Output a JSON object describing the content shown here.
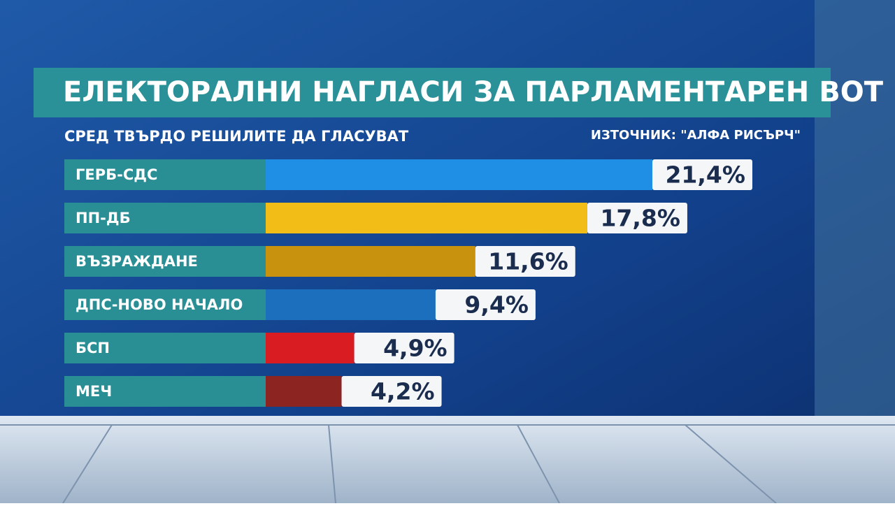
{
  "chart_data": {
    "type": "bar",
    "orientation": "horizontal",
    "title": "ЕЛЕКТОРАЛНИ НАГЛАСИ ЗА ПАРЛАМЕНТАРЕН ВОТ",
    "subtitle": "СРЕД ТВЪРДО РЕШИЛИТЕ ДА ГЛАСУВАТ",
    "source": "ИЗТОЧНИК: \"АЛФА РИСЪРЧ\"",
    "categories": [
      "ГЕРБ-СДС",
      "ПП-ДБ",
      "ВЪЗРАЖДАНЕ",
      "ДПС-НОВО НАЧАЛО",
      "БСП",
      "МЕЧ"
    ],
    "values": [
      21.4,
      17.8,
      11.6,
      9.4,
      4.9,
      4.2
    ],
    "value_labels": [
      "21,4%",
      "17,8%",
      "11,6%",
      "9,4%",
      "4,9%",
      "4,2%"
    ],
    "colors": [
      "#1e8fe4",
      "#f2bd16",
      "#c9920e",
      "#1b6fbd",
      "#d81c22",
      "#8c2421"
    ]
  }
}
